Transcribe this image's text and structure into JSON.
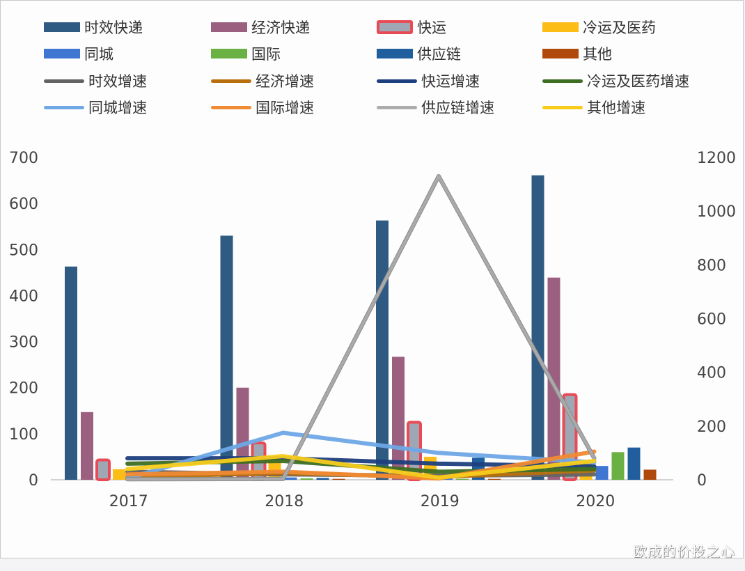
{
  "chart_data": {
    "type": "bar+line (combo, dual axis)",
    "title": "",
    "categories": [
      "2017",
      "2018",
      "2019",
      "2020"
    ],
    "left_axis": {
      "ylim": [
        0,
        700
      ],
      "ticks": [
        "0",
        "100",
        "200",
        "300",
        "400",
        "500",
        "600",
        "700"
      ]
    },
    "right_axis": {
      "ylim": [
        0,
        1200
      ],
      "ticks": [
        "0",
        "200",
        "400",
        "600",
        "800",
        "1000",
        "1200"
      ]
    },
    "grid": false,
    "legend_position": "top",
    "bar_series": [
      {
        "name": "时效快递",
        "color": "#2f5a82",
        "values": [
          463,
          530,
          563,
          661
        ]
      },
      {
        "name": "经济快递",
        "color": "#9b5f7f",
        "values": [
          147,
          200,
          267,
          439
        ]
      },
      {
        "name": "快运",
        "color": "#9ea7b3",
        "border": "#e84b55",
        "values": [
          43,
          80,
          125,
          185
        ]
      },
      {
        "name": "冷运及医药",
        "color": "#fbbd16",
        "values": [
          23,
          45,
          50,
          40
        ]
      },
      {
        "name": "同城",
        "color": "#3e76d1",
        "values": [
          2,
          5,
          3,
          30
        ]
      },
      {
        "name": "国际",
        "color": "#6ab043",
        "values": [
          1,
          3,
          2,
          60
        ]
      },
      {
        "name": "供应链",
        "color": "#205e9e",
        "values": [
          2,
          4,
          48,
          70
        ]
      },
      {
        "name": "其他",
        "color": "#b04a0c",
        "values": [
          1,
          2,
          2,
          22
        ]
      }
    ],
    "line_series": [
      {
        "name": "时效增速",
        "color": "#636363",
        "axis": "right",
        "values": [
          30,
          20,
          15,
          20
        ]
      },
      {
        "name": "经济增速",
        "color": "#b8700f",
        "axis": "right",
        "values": [
          10,
          25,
          10,
          35
        ]
      },
      {
        "name": "快运增速",
        "color": "#1d3f7d",
        "axis": "right",
        "values": [
          80,
          80,
          60,
          50
        ]
      },
      {
        "name": "冷运及医药增速",
        "color": "#3d6e22",
        "axis": "right",
        "values": [
          60,
          70,
          30,
          40
        ]
      },
      {
        "name": "同城增速",
        "color": "#6ea8e6",
        "axis": "right",
        "values": [
          5,
          175,
          100,
          65
        ]
      },
      {
        "name": "国际增速",
        "color": "#f08a33",
        "axis": "right",
        "values": [
          20,
          30,
          5,
          105
        ]
      },
      {
        "name": "供应链增速",
        "color": "#acacac",
        "axis": "right",
        "values": [
          2,
          3,
          1130,
          80
        ]
      },
      {
        "name": "其他增速",
        "color": "#f8cc1b",
        "axis": "right",
        "values": [
          40,
          88,
          8,
          70
        ]
      }
    ]
  },
  "legend": {
    "items": [
      {
        "label": "时效快递",
        "kind": "bar",
        "color": "#2f5a82"
      },
      {
        "label": "经济快递",
        "kind": "bar",
        "color": "#9b5f7f"
      },
      {
        "label": "快运",
        "kind": "bar",
        "color": "#9ea7b3",
        "border": "#e84b55"
      },
      {
        "label": "冷运及医药",
        "kind": "bar",
        "color": "#fbbd16"
      },
      {
        "label": "同城",
        "kind": "bar",
        "color": "#3e76d1"
      },
      {
        "label": "国际",
        "kind": "bar",
        "color": "#6ab043"
      },
      {
        "label": "供应链",
        "kind": "bar",
        "color": "#205e9e"
      },
      {
        "label": "其他",
        "kind": "bar",
        "color": "#b04a0c"
      },
      {
        "label": "时效增速",
        "kind": "line",
        "color": "#636363"
      },
      {
        "label": "经济增速",
        "kind": "line",
        "color": "#b8700f"
      },
      {
        "label": "快运增速",
        "kind": "line",
        "color": "#1d3f7d"
      },
      {
        "label": "冷运及医药增速",
        "kind": "line",
        "color": "#3d6e22"
      },
      {
        "label": "同城增速",
        "kind": "line",
        "color": "#6ea8e6"
      },
      {
        "label": "国际增速",
        "kind": "line",
        "color": "#f08a33"
      },
      {
        "label": "供应链增速",
        "kind": "line",
        "color": "#acacac"
      },
      {
        "label": "其他增速",
        "kind": "line",
        "color": "#f8cc1b"
      }
    ]
  },
  "watermark": "欧成的价投之心"
}
